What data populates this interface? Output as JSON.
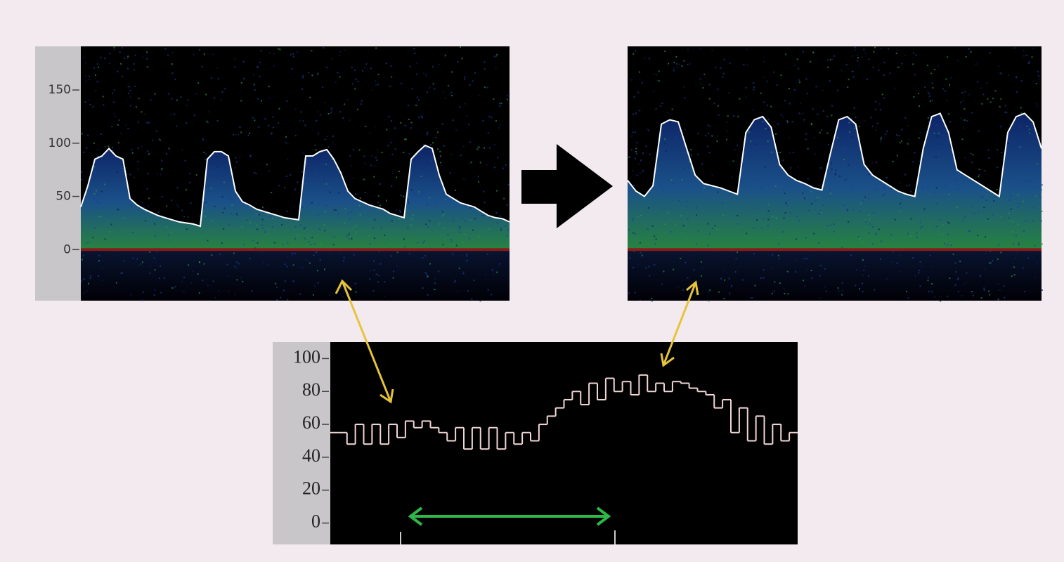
{
  "chart_data": [
    {
      "type": "doppler",
      "ylim": [
        -48,
        191
      ],
      "yticks": [
        0,
        50,
        100,
        150
      ],
      "series": [
        {
          "color": "#ffffff",
          "values": [
            40,
            60,
            85,
            88,
            95,
            88,
            85,
            48,
            42,
            38,
            35,
            32,
            30,
            28,
            26,
            25,
            24,
            22,
            85,
            92,
            92,
            88,
            55,
            45,
            42,
            38,
            36,
            34,
            32,
            30,
            29,
            28,
            88,
            88,
            92,
            94,
            85,
            72,
            55,
            48,
            45,
            42,
            40,
            38,
            34,
            32,
            30,
            85,
            92,
            98,
            95,
            70,
            52,
            48,
            44,
            42,
            40,
            36,
            32,
            30,
            29,
            26
          ]
        }
      ],
      "baseline_color": "#8b1a1a"
    },
    {
      "type": "doppler",
      "ylim": [
        -48,
        191
      ],
      "series": [
        {
          "color": "#ffffff",
          "values": [
            65,
            55,
            50,
            60,
            118,
            122,
            120,
            95,
            70,
            62,
            60,
            58,
            55,
            52,
            110,
            122,
            125,
            115,
            80,
            70,
            65,
            62,
            58,
            56,
            90,
            122,
            125,
            118,
            80,
            70,
            65,
            60,
            55,
            52,
            50,
            95,
            125,
            128,
            110,
            75,
            70,
            65,
            60,
            55,
            50,
            110,
            125,
            128,
            120,
            95
          ]
        }
      ],
      "baseline_color": "#8b1a1a"
    },
    {
      "type": "step",
      "ylim": [
        -13,
        110
      ],
      "yticks": [
        0,
        20,
        40,
        60,
        80,
        100
      ],
      "series": [
        {
          "color": "#f2d6d6",
          "values": [
            55,
            55,
            48,
            60,
            48,
            60,
            48,
            60,
            52,
            62,
            58,
            62,
            58,
            55,
            50,
            58,
            45,
            58,
            45,
            58,
            45,
            55,
            48,
            55,
            50,
            60,
            65,
            70,
            75,
            80,
            72,
            85,
            75,
            88,
            80,
            86,
            78,
            90,
            80,
            85,
            80,
            86,
            85,
            82,
            80,
            78,
            70,
            75,
            55,
            70,
            50,
            65,
            48,
            60,
            50,
            55
          ]
        }
      ]
    }
  ]
}
